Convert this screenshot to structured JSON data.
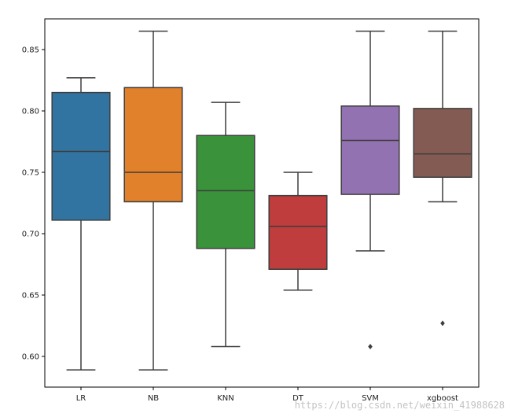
{
  "chart_data": {
    "type": "box",
    "title": "",
    "xlabel": "",
    "ylabel": "",
    "ylim": [
      0.575,
      0.875
    ],
    "yticks": [
      0.6,
      0.65,
      0.7,
      0.75,
      0.8,
      0.85
    ],
    "grid": false,
    "categories": [
      "LR",
      "NB",
      "KNN",
      "DT",
      "SVM",
      "xgboost"
    ],
    "colors": [
      "#3274a1",
      "#e1812c",
      "#3a923a",
      "#c03d3e",
      "#9372b2",
      "#845b53"
    ],
    "boxes": [
      {
        "category": "LR",
        "whisker_low": 0.589,
        "q1": 0.711,
        "median": 0.767,
        "q3": 0.815,
        "whisker_high": 0.827,
        "outliers": []
      },
      {
        "category": "NB",
        "whisker_low": 0.589,
        "q1": 0.726,
        "median": 0.75,
        "q3": 0.819,
        "whisker_high": 0.865,
        "outliers": []
      },
      {
        "category": "KNN",
        "whisker_low": 0.608,
        "q1": 0.688,
        "median": 0.735,
        "q3": 0.78,
        "whisker_high": 0.807,
        "outliers": []
      },
      {
        "category": "DT",
        "whisker_low": 0.654,
        "q1": 0.671,
        "median": 0.706,
        "q3": 0.731,
        "whisker_high": 0.75,
        "outliers": []
      },
      {
        "category": "SVM",
        "whisker_low": 0.686,
        "q1": 0.732,
        "median": 0.776,
        "q3": 0.804,
        "whisker_high": 0.865,
        "outliers": [
          0.608
        ]
      },
      {
        "category": "xgboost",
        "whisker_low": 0.726,
        "q1": 0.746,
        "median": 0.765,
        "q3": 0.802,
        "whisker_high": 0.865,
        "outliers": [
          0.627
        ]
      }
    ]
  },
  "watermark": "https://blog.csdn.net/weixin_41988628"
}
